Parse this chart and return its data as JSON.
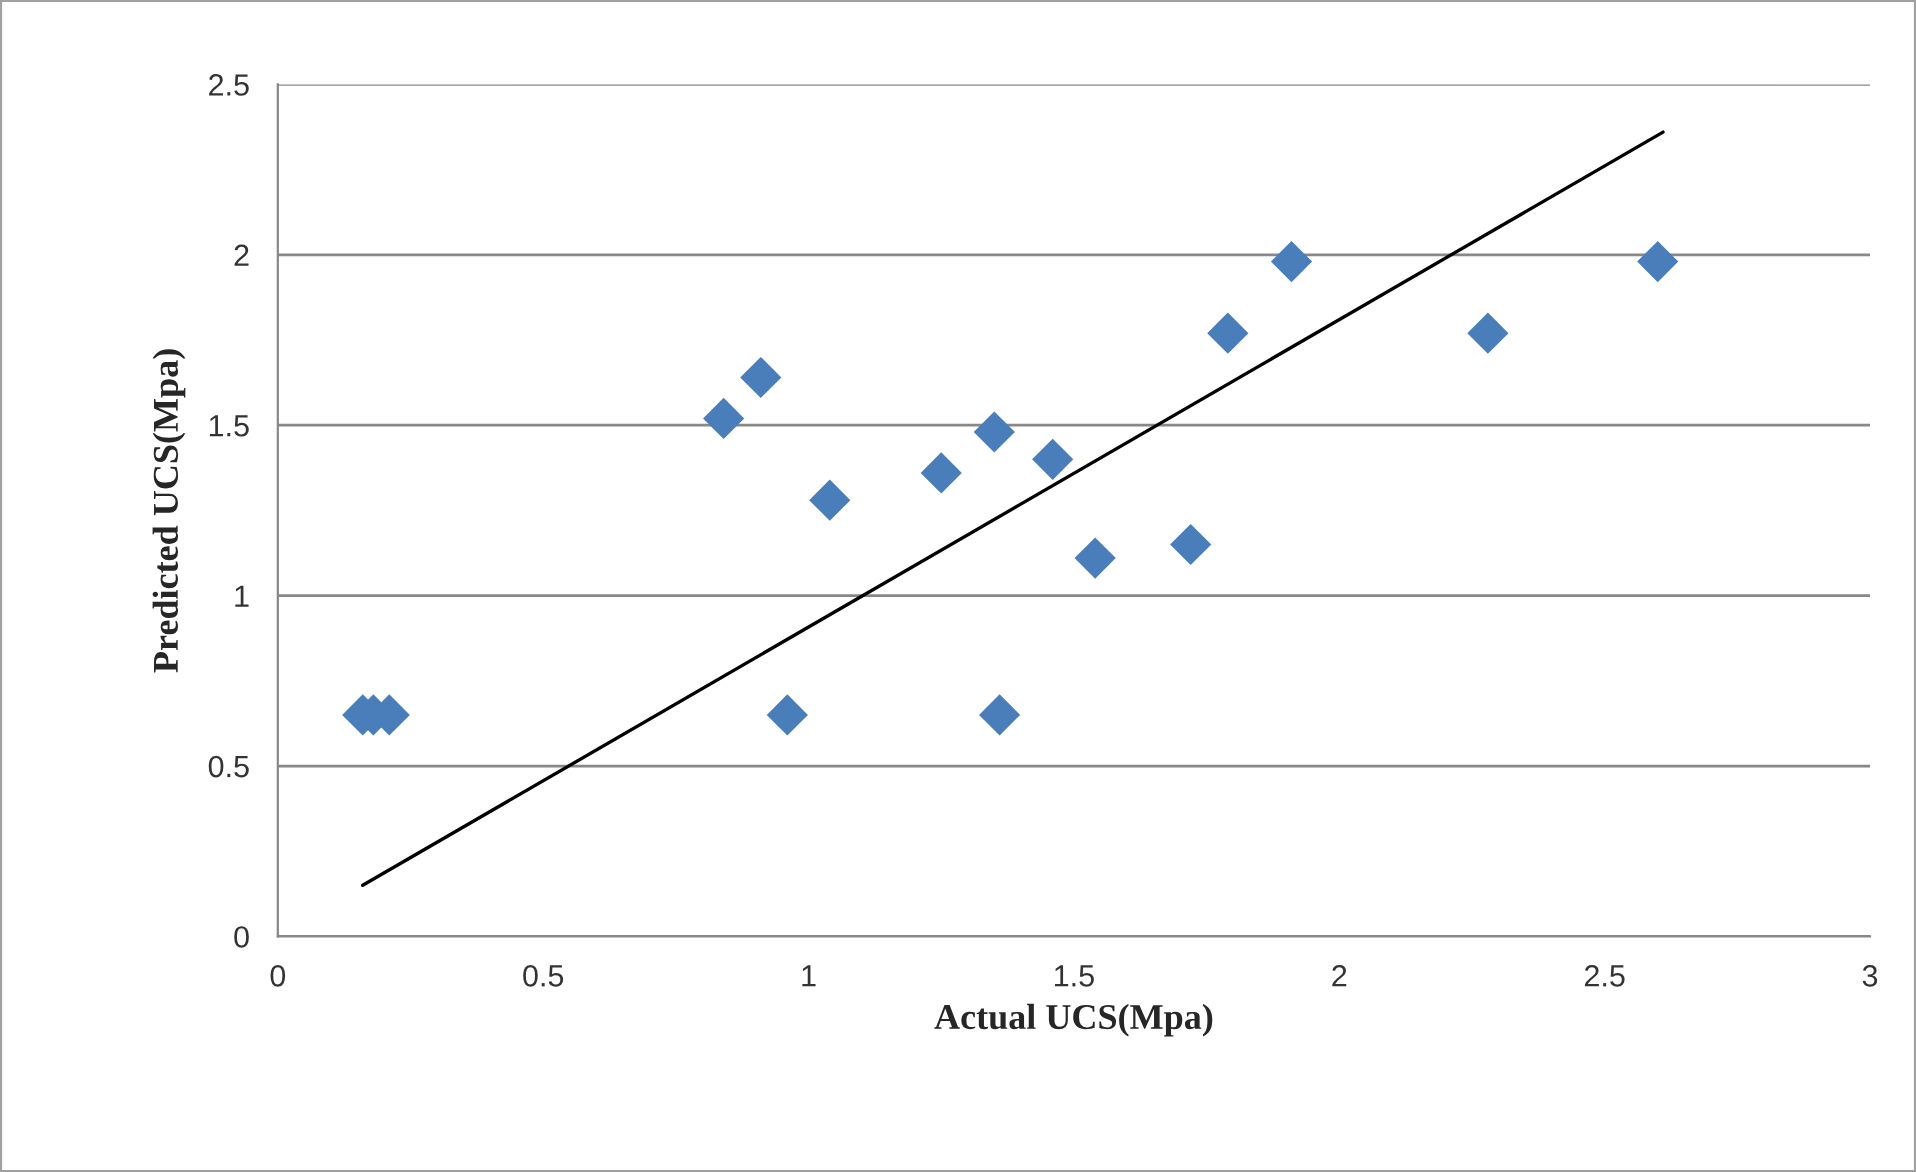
{
  "chart_data": {
    "type": "scatter",
    "xlabel": "Actual UCS(Mpa)",
    "ylabel": "Predicted UCS(Mpa)",
    "xlim": [
      0,
      3
    ],
    "xticks": [
      0,
      0.5,
      1,
      1.5,
      2,
      2.5,
      3
    ],
    "ylim": [
      0,
      2.5
    ],
    "yticks": [
      0,
      0.5,
      1,
      1.5,
      2,
      2.5
    ],
    "grid": "y",
    "legend": false,
    "series": [
      {
        "marker": "diamond",
        "color": "#4a7ebb",
        "x": [
          0.16,
          0.18,
          0.21,
          0.84,
          0.91,
          0.96,
          1.04,
          1.25,
          1.35,
          1.36,
          1.46,
          1.54,
          1.72,
          1.79,
          1.91,
          2.28,
          2.6
        ],
        "values": [
          0.65,
          0.65,
          0.65,
          1.52,
          1.64,
          0.65,
          1.28,
          1.36,
          1.48,
          0.65,
          1.4,
          1.11,
          1.15,
          1.77,
          1.98,
          1.77,
          1.98
        ]
      },
      {
        "type": "line",
        "marker": "none",
        "line_style": "solid",
        "color": "#000000",
        "x": [
          0.16,
          2.61
        ],
        "values": [
          0.15,
          2.36
        ]
      }
    ]
  }
}
